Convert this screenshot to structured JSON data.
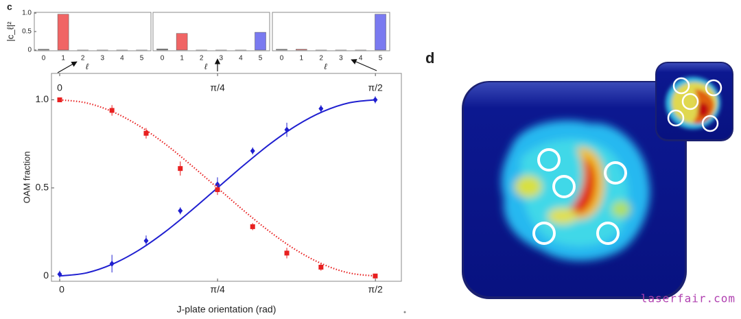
{
  "panel_labels": [
    "c",
    "d"
  ],
  "watermark": "laserfair.com",
  "chart_data": [
    {
      "type": "bar",
      "y_label": "|c_ℓ|²",
      "x_label": "ℓ",
      "categories": [
        "0",
        "1",
        "2",
        "3",
        "4",
        "5"
      ],
      "values": [
        0.02,
        0.97,
        0,
        0,
        0,
        0
      ],
      "colors": [
        "#888888",
        "#f06565",
        "#f06565",
        "#f06565",
        "#f06565",
        "#7a7af0"
      ],
      "ylim": [
        -0.02,
        1.02
      ],
      "yticks": [
        0,
        0.5,
        {
          "value": 1,
          "label": "1.0"
        }
      ]
    },
    {
      "type": "bar",
      "x_label": "ℓ",
      "categories": [
        "0",
        "1",
        "2",
        "3",
        "4",
        "5"
      ],
      "values": [
        0.03,
        0.45,
        0,
        0,
        0,
        0.48
      ],
      "colors": [
        "#888888",
        "#f06565",
        "#f06565",
        "#f06565",
        "#f06565",
        "#7a7af0"
      ],
      "ylim": [
        -0.02,
        1.02
      ]
    },
    {
      "type": "bar",
      "x_label": "ℓ",
      "categories": [
        "0",
        "1",
        "2",
        "3",
        "4",
        "5"
      ],
      "values": [
        0.02,
        0.02,
        0,
        0,
        0,
        0.97
      ],
      "colors": [
        "#888888",
        "#f06565",
        "#f06565",
        "#f06565",
        "#f06565",
        "#7a7af0"
      ],
      "ylim": [
        -0.02,
        1.02
      ]
    },
    {
      "type": "scatter",
      "x_label": "J-plate orientation (rad)",
      "y_label": "OAM fraction",
      "xlim": [
        -0.041,
        1.7
      ],
      "ylim": [
        -0.03,
        1.15
      ],
      "xticks": [
        0,
        {
          "value": 0.7854,
          "label": "π/4"
        },
        {
          "value": 1.5708,
          "label": "π/2"
        }
      ],
      "yticks": [
        0,
        0.5,
        {
          "value": 1,
          "label": "1.0"
        }
      ],
      "series": [
        {
          "color": "#1f1fd0",
          "marker": "diamond",
          "x": [
            0,
            0.26,
            0.43,
            0.6,
            0.785,
            0.96,
            1.13,
            1.3,
            1.57
          ],
          "values": [
            0.01,
            0.07,
            0.2,
            0.37,
            0.52,
            0.71,
            0.83,
            0.95,
            1.0
          ],
          "errors": [
            0.02,
            0.05,
            0.03,
            0.02,
            0.04,
            0.02,
            0.04,
            0.02,
            0.02
          ]
        },
        {
          "color": "#e82020",
          "marker": "square",
          "x": [
            0,
            0.26,
            0.43,
            0.6,
            0.785,
            0.96,
            1.13,
            1.3,
            1.57
          ],
          "values": [
            1.0,
            0.94,
            0.81,
            0.61,
            0.49,
            0.28,
            0.13,
            0.05,
            0.0
          ],
          "errors": [
            0.01,
            0.03,
            0.03,
            0.04,
            0.03,
            0.02,
            0.03,
            0.02,
            0.01
          ]
        }
      ],
      "fits": [
        {
          "color": "#1f1fd0",
          "style": "solid",
          "x": [
            0,
            0.131,
            0.262,
            0.393,
            0.524,
            0.654,
            0.785,
            0.916,
            1.047,
            1.178,
            1.309,
            1.44,
            1.571
          ],
          "values": [
            0,
            0.017,
            0.067,
            0.146,
            0.25,
            0.371,
            0.5,
            0.629,
            0.75,
            0.854,
            0.933,
            0.983,
            1
          ]
        },
        {
          "color": "#e82020",
          "style": "dotted",
          "x": [
            0,
            0.131,
            0.262,
            0.393,
            0.524,
            0.654,
            0.785,
            0.916,
            1.047,
            1.178,
            1.309,
            1.44,
            1.571
          ],
          "values": [
            1,
            0.983,
            0.933,
            0.854,
            0.75,
            0.629,
            0.5,
            0.371,
            0.25,
            0.146,
            0.067,
            0.017,
            0
          ]
        }
      ]
    }
  ]
}
